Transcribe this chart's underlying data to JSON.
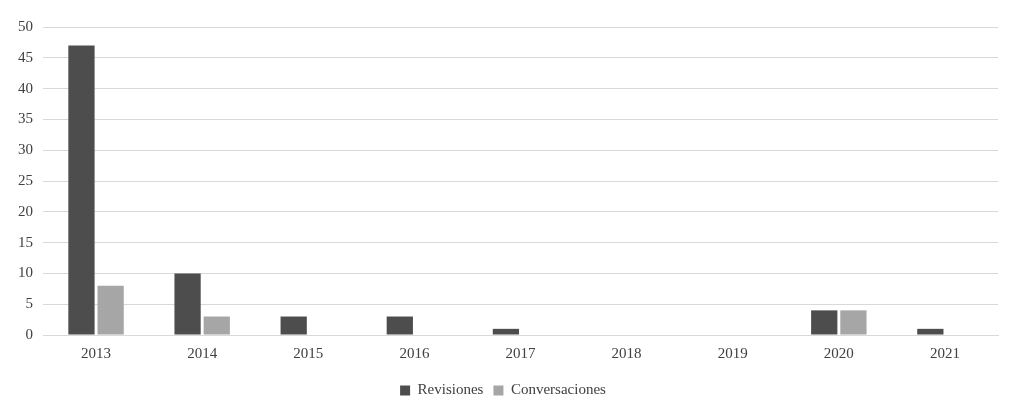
{
  "chart_data": {
    "type": "bar",
    "categories": [
      "2013",
      "2014",
      "2015",
      "2016",
      "2017",
      "2018",
      "2019",
      "2020",
      "2021"
    ],
    "series": [
      {
        "name": "Revisiones",
        "color": "#4d4d4d",
        "values": [
          47,
          10,
          3,
          3,
          1,
          0,
          0,
          4,
          1
        ]
      },
      {
        "name": "Conversaciones",
        "color": "#a6a6a6",
        "values": [
          8,
          3,
          0,
          0,
          0,
          0,
          0,
          4,
          0
        ]
      }
    ],
    "ylim": [
      0,
      50
    ],
    "yticks": [
      0,
      5,
      10,
      15,
      20,
      25,
      30,
      35,
      40,
      45,
      50
    ],
    "grid": "y",
    "legend": "bottom"
  }
}
